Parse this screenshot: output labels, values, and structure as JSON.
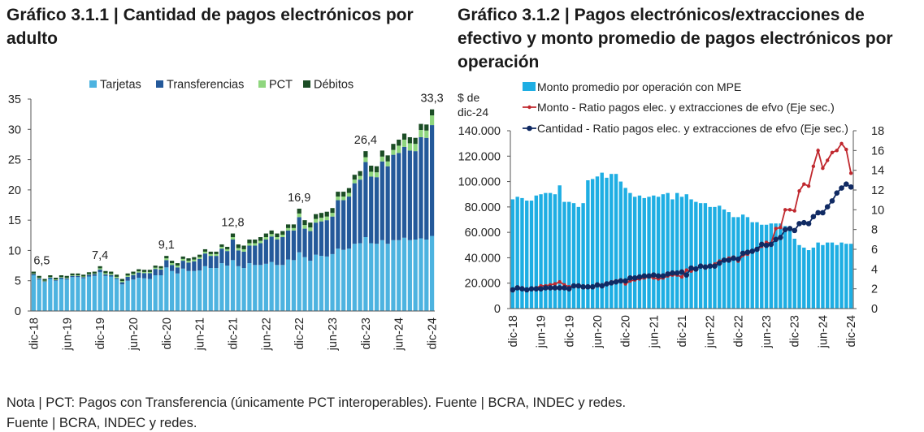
{
  "colors": {
    "tarjetas": "#4db3e0",
    "transferencias": "#24599a",
    "pct": "#8fd67e",
    "debitos": "#1b4d25",
    "monto_bars": "#1eaee3",
    "monto_line": "#c0282e",
    "cantidad_line": "#102a63"
  },
  "chart_data": [
    {
      "type": "bar",
      "stacked": true,
      "title": "Gráfico 3.1.1 | Cantidad de pagos electrónicos por adulto",
      "legend_position": "top",
      "ylim": [
        0,
        35
      ],
      "yticks": [
        "0",
        "5",
        "10",
        "15",
        "20",
        "25",
        "30",
        "35"
      ],
      "xtick_labels": [
        "dic-18",
        "jun-19",
        "dic-19",
        "jun-20",
        "dic-20",
        "jun-21",
        "dic-21",
        "jun-22",
        "dic-22",
        "jun-23",
        "dic-23",
        "jun-24",
        "dic-24"
      ],
      "series": [
        {
          "name": "Tarjetas",
          "values": [
            5.9,
            5.2,
            4.8,
            5.3,
            5.0,
            5.3,
            5.2,
            5.6,
            5.6,
            5.4,
            5.7,
            5.8,
            6.4,
            5.8,
            5.7,
            5.3,
            4.4,
            5.0,
            5.2,
            5.5,
            5.4,
            5.3,
            5.9,
            5.9,
            7.2,
            6.6,
            6.2,
            7.0,
            6.6,
            6.6,
            6.7,
            7.4,
            7.1,
            7.1,
            7.9,
            7.5,
            8.4,
            7.4,
            7.1,
            7.9,
            7.6,
            7.6,
            7.8,
            8.1,
            7.6,
            7.6,
            8.5,
            8.4,
            9.7,
            8.9,
            8.3,
            9.3,
            9.1,
            9.0,
            9.4,
            10.3,
            10.1,
            10.3,
            11.1,
            11.2,
            12.2,
            11.2,
            11.1,
            11.7,
            11.1,
            11.7,
            11.7,
            12.1,
            11.7,
            11.8,
            12.0,
            11.8,
            12.4
          ]
        },
        {
          "name": "Transferencias",
          "values": [
            0.2,
            0.2,
            0.1,
            0.2,
            0.1,
            0.2,
            0.2,
            0.2,
            0.2,
            0.2,
            0.3,
            0.3,
            0.45,
            0.25,
            0.25,
            0.15,
            0.35,
            0.65,
            0.75,
            0.85,
            0.85,
            0.95,
            1.05,
            0.95,
            1.2,
            1.0,
            1.0,
            1.3,
            1.4,
            1.6,
            1.9,
            2.1,
            2.0,
            2.0,
            2.4,
            2.4,
            3.4,
            2.6,
            2.7,
            2.9,
            3.2,
            3.6,
            4.0,
            4.2,
            4.2,
            4.6,
            4.8,
            4.9,
            5.8,
            4.7,
            4.9,
            5.3,
            5.7,
            6.0,
            6.2,
            8.0,
            8.2,
            8.6,
            10.0,
            10.5,
            12.4,
            11.0,
            11.0,
            13.0,
            12.8,
            14.1,
            14.4,
            15.0,
            14.8,
            14.6,
            16.7,
            16.8,
            18.3
          ]
        },
        {
          "name": "PCT",
          "values": [
            0.1,
            0.1,
            0.1,
            0.1,
            0.1,
            0.1,
            0.1,
            0.1,
            0.1,
            0.1,
            0.1,
            0.1,
            0.2,
            0.2,
            0.2,
            0.2,
            0.2,
            0.2,
            0.2,
            0.2,
            0.2,
            0.2,
            0.2,
            0.2,
            0.3,
            0.3,
            0.3,
            0.3,
            0.3,
            0.3,
            0.3,
            0.3,
            0.3,
            0.3,
            0.3,
            0.3,
            0.4,
            0.4,
            0.4,
            0.4,
            0.4,
            0.4,
            0.4,
            0.4,
            0.4,
            0.4,
            0.4,
            0.4,
            0.6,
            0.6,
            0.6,
            0.6,
            0.6,
            0.6,
            0.6,
            0.6,
            0.6,
            0.6,
            0.6,
            0.6,
            0.8,
            0.8,
            0.8,
            0.8,
            0.8,
            0.8,
            1.2,
            1.2,
            1.2,
            1.2,
            1.2,
            1.2,
            1.6
          ]
        },
        {
          "name": "Débitos",
          "values": [
            0.3,
            0.3,
            0.3,
            0.3,
            0.3,
            0.3,
            0.3,
            0.3,
            0.3,
            0.3,
            0.3,
            0.3,
            0.35,
            0.35,
            0.35,
            0.35,
            0.35,
            0.35,
            0.35,
            0.35,
            0.35,
            0.35,
            0.35,
            0.35,
            0.4,
            0.4,
            0.4,
            0.4,
            0.4,
            0.4,
            0.4,
            0.4,
            0.4,
            0.4,
            0.4,
            0.4,
            0.6,
            0.6,
            0.6,
            0.6,
            0.6,
            0.6,
            0.6,
            0.6,
            0.6,
            0.6,
            0.6,
            0.6,
            0.8,
            0.8,
            0.8,
            0.8,
            0.8,
            0.8,
            0.8,
            0.8,
            0.8,
            0.8,
            0.8,
            0.8,
            1.0,
            1.0,
            1.0,
            1.0,
            1.0,
            1.0,
            1.0,
            1.0,
            1.0,
            1.0,
            1.0,
            1.0,
            1.0
          ]
        }
      ],
      "annotations": [
        {
          "x": "dic-18",
          "label": "6,5"
        },
        {
          "x": "dic-19",
          "label": "7,4"
        },
        {
          "x": "dic-20",
          "label": "9,1"
        },
        {
          "x": "dic-21",
          "label": "12,8"
        },
        {
          "x": "dic-22",
          "label": "16,9"
        },
        {
          "x": "dic-23",
          "label": "26,4"
        },
        {
          "x": "dic-24",
          "label": "33,3"
        }
      ]
    },
    {
      "type": "bar+line",
      "title": "Gráfico 3.1.2 | Pagos electrónicos/extracciones de efectivo y monto promedio de pagos electrónicos por operación",
      "ylabel": "$ de dic-24",
      "ylim": [
        0,
        140000
      ],
      "y2lim": [
        0,
        18
      ],
      "yticks": [
        "0",
        "20.000",
        "40.000",
        "60.000",
        "80.000",
        "100.000",
        "120.000",
        "140.000"
      ],
      "y2ticks": [
        "0",
        "2",
        "4",
        "6",
        "8",
        "10",
        "12",
        "14",
        "16",
        "18"
      ],
      "legend_position": "top",
      "xtick_labels": [
        "dic-18",
        "jun-19",
        "dic-19",
        "jun-20",
        "dic-20",
        "jun-21",
        "dic-21",
        "jun-22",
        "dic-22",
        "jun-23",
        "dic-23",
        "jun-24",
        "dic-24"
      ],
      "series": [
        {
          "name": "Monto promedio por operación con MPE",
          "type": "bar",
          "axis": "primary",
          "values": [
            86000,
            88000,
            87000,
            85000,
            85000,
            89000,
            90000,
            91000,
            91000,
            90000,
            97000,
            84000,
            84000,
            83000,
            80000,
            83000,
            101000,
            102000,
            104000,
            107000,
            103000,
            106000,
            106000,
            100000,
            95000,
            91000,
            88000,
            89000,
            87000,
            88000,
            89000,
            88000,
            90000,
            91000,
            86000,
            91000,
            88000,
            90000,
            86000,
            84000,
            83000,
            83000,
            80000,
            80000,
            81000,
            78000,
            76000,
            72000,
            72000,
            74000,
            72000,
            68000,
            68000,
            66000,
            66000,
            67000,
            67000,
            67000,
            65000,
            62000,
            55000,
            50000,
            48000,
            46000,
            48000,
            52000,
            50000,
            52000,
            52000,
            50000,
            52000,
            51000,
            51000
          ]
        },
        {
          "name": "Monto - Ratio pagos elec. y extracciones de efvo (Eje sec.)",
          "type": "line",
          "axis": "secondary",
          "values": [
            1.8,
            2.1,
            2.1,
            1.9,
            2.0,
            2.1,
            2.3,
            2.3,
            2.4,
            2.5,
            2.7,
            2.4,
            2.2,
            2.3,
            2.3,
            2.2,
            2.2,
            2.2,
            2.3,
            2.4,
            2.5,
            2.7,
            2.8,
            2.9,
            2.5,
            2.8,
            2.9,
            3.0,
            3.1,
            3.2,
            3.1,
            3.0,
            3.1,
            3.3,
            3.4,
            3.4,
            3.2,
            3.9,
            3.8,
            4.1,
            4.2,
            4.3,
            4.3,
            4.5,
            4.8,
            4.9,
            5.1,
            5.2,
            4.8,
            5.4,
            5.5,
            5.8,
            6.0,
            6.3,
            6.7,
            6.6,
            8.1,
            8.2,
            10.0,
            10.0,
            9.9,
            11.9,
            12.6,
            12.4,
            14.4,
            16.0,
            14.2,
            15.0,
            15.8,
            16.0,
            16.7,
            16.1,
            13.7
          ]
        },
        {
          "name": "Cantidad - Ratio pagos elec. y extracciones de efvo (Eje sec.)",
          "type": "line",
          "axis": "secondary",
          "values": [
            1.9,
            2.1,
            2.0,
            1.9,
            2.0,
            2.0,
            2.0,
            2.1,
            2.1,
            2.1,
            2.1,
            2.1,
            2.0,
            2.3,
            2.3,
            2.2,
            2.2,
            2.2,
            2.4,
            2.3,
            2.5,
            2.6,
            2.7,
            2.8,
            2.8,
            3.1,
            3.1,
            3.2,
            3.3,
            3.3,
            3.4,
            3.3,
            3.3,
            3.5,
            3.6,
            3.6,
            3.7,
            3.4,
            4.1,
            4.0,
            4.3,
            4.2,
            4.3,
            4.3,
            4.6,
            4.9,
            4.9,
            5.1,
            5.0,
            5.6,
            5.7,
            5.8,
            6.0,
            6.5,
            6.4,
            6.5,
            7.0,
            7.2,
            8.0,
            8.1,
            7.9,
            8.6,
            8.7,
            8.6,
            9.3,
            9.7,
            9.7,
            10.3,
            10.9,
            11.7,
            12.2,
            12.6,
            12.3
          ]
        }
      ]
    }
  ],
  "footnote": {
    "line1": "Nota | PCT: Pagos con Transferencia (únicamente PCT interoperables).  Fuente | BCRA, INDEC y redes.",
    "line2": "Fuente | BCRA, INDEC y redes."
  }
}
